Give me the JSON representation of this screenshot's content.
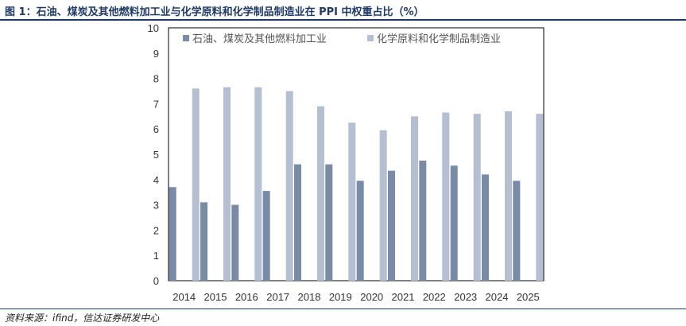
{
  "header": {
    "title": "图 1：石油、煤炭及其他燃料加工业与化学原料和化学制品制造业在 PPI 中权重占比（%）"
  },
  "footer": {
    "source": "资料来源：ifind，信达证券研发中心"
  },
  "colors": {
    "series1": "#7a8ba8",
    "series2": "#b4bfd1",
    "rule": "#1f3a66"
  },
  "chart_data": {
    "type": "bar",
    "title": "石油、煤炭及其他燃料加工业与化学原料和化学制品制造业在 PPI 中权重占比（%）",
    "xlabel": "",
    "ylabel": "",
    "ylim": [
      0,
      10
    ],
    "yticks": [
      "0",
      "1",
      "2",
      "3",
      "4",
      "5",
      "6",
      "7",
      "8",
      "9",
      "10"
    ],
    "legend_position": "top",
    "categories": [
      "2014",
      "2015",
      "2016",
      "2017",
      "2018",
      "2019",
      "2020",
      "2021",
      "2022",
      "2023",
      "2024",
      "2025"
    ],
    "series": [
      {
        "name": "石油、煤炭及其他燃料加工业",
        "values": [
          3.7,
          3.1,
          3.0,
          3.55,
          4.6,
          4.6,
          3.95,
          4.35,
          4.75,
          4.55,
          4.2,
          3.95
        ]
      },
      {
        "name": "化学原料和化学制品制造业",
        "values": [
          7.6,
          7.65,
          7.65,
          7.5,
          6.9,
          6.25,
          5.95,
          6.5,
          6.65,
          6.6,
          6.7,
          6.6
        ]
      }
    ]
  }
}
